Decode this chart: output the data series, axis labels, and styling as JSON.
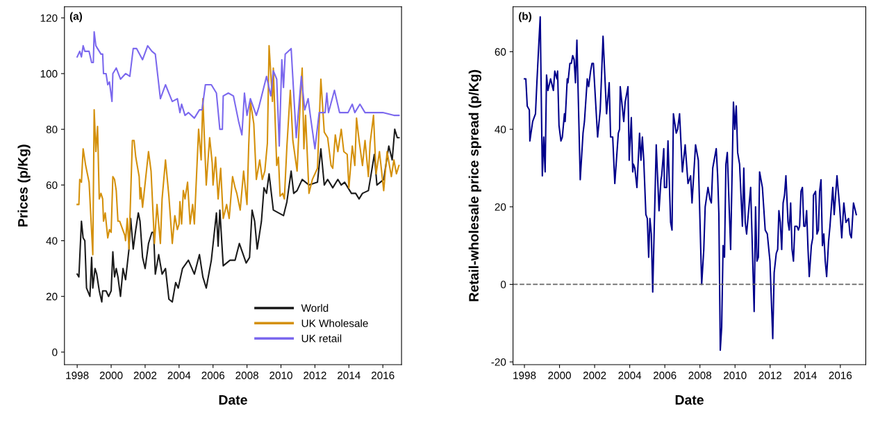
{
  "chart_data": [
    {
      "type": "line",
      "annotations": [
        "(a)"
      ],
      "xlabel": "Date",
      "ylabel": "Prices (p/Kg)",
      "xlim": [
        1997.25,
        2017.1
      ],
      "ylim": [
        -4.5,
        124
      ],
      "xticks": [
        1998,
        2000,
        2002,
        2004,
        2006,
        2008,
        2010,
        2012,
        2014,
        2016
      ],
      "yticks": [
        0,
        20,
        40,
        60,
        80,
        100,
        120
      ],
      "grid": false,
      "legend": "bottom right",
      "line_style": "solid",
      "marker": "none",
      "series": [
        {
          "name": "World",
          "color": "#1a1a1a",
          "x": [
            1998.0,
            1998.1,
            1998.25,
            1998.35,
            1998.45,
            1998.55,
            1998.75,
            1998.85,
            1998.92,
            1999.05,
            1999.15,
            1999.3,
            1999.45,
            1999.5,
            1999.7,
            1999.85,
            2000.0,
            2000.1,
            2000.2,
            2000.3,
            2000.4,
            2000.55,
            2000.7,
            2000.85,
            2001.05,
            2001.15,
            2001.3,
            2001.45,
            2001.6,
            2001.7,
            2001.85,
            2002.0,
            2002.2,
            2002.4,
            2002.5,
            2002.6,
            2002.8,
            2003.0,
            2003.2,
            2003.4,
            2003.6,
            2003.8,
            2003.95,
            2004.2,
            2004.55,
            2004.9,
            2005.2,
            2005.4,
            2005.6,
            2005.9,
            2006.2,
            2006.3,
            2006.4,
            2006.6,
            2006.8,
            2007.0,
            2007.3,
            2007.55,
            2007.95,
            2008.15,
            2008.3,
            2008.45,
            2008.6,
            2008.85,
            2009.0,
            2009.15,
            2009.3,
            2009.55,
            2009.85,
            2010.15,
            2010.35,
            2010.6,
            2010.75,
            2010.95,
            2011.25,
            2011.65,
            2012.15,
            2012.35,
            2012.55,
            2012.75,
            2013.05,
            2013.35,
            2013.55,
            2013.75,
            2014.15,
            2014.4,
            2014.6,
            2014.8,
            2015.15,
            2015.5,
            2015.65,
            2016.05,
            2016.35,
            2016.55,
            2016.7,
            2016.85,
            2016.95
          ],
          "values": [
            28,
            27,
            47,
            41,
            40,
            23,
            20,
            34,
            23,
            30,
            28,
            22,
            18,
            22,
            22,
            20,
            22,
            36,
            27,
            30,
            27,
            20,
            30,
            26,
            37,
            48,
            37,
            44,
            50,
            47,
            34,
            30,
            39,
            43,
            43,
            28,
            35,
            28,
            30,
            19,
            18,
            25,
            23,
            30,
            33,
            28,
            35,
            27,
            23,
            33,
            50,
            38,
            51,
            31,
            32,
            33,
            33,
            39,
            32,
            34,
            51,
            47,
            37,
            47,
            59,
            57,
            64,
            51,
            50,
            49,
            54,
            65,
            57,
            58,
            62,
            60,
            61,
            73,
            60,
            62,
            59,
            62,
            60,
            61,
            57,
            57,
            55,
            57,
            58,
            71,
            60,
            62,
            74,
            69,
            80,
            77,
            77
          ]
        },
        {
          "name": "UK Wholesale",
          "color": "#d4900a",
          "x": [
            1998.0,
            1998.1,
            1998.15,
            1998.25,
            1998.35,
            1998.5,
            1998.6,
            1998.7,
            1998.92,
            1999.0,
            1999.1,
            1999.2,
            1999.3,
            1999.4,
            1999.5,
            1999.55,
            1999.65,
            1999.8,
            1999.9,
            2000.0,
            2000.1,
            2000.2,
            2000.3,
            2000.4,
            2000.5,
            2000.8,
            2000.85,
            2000.95,
            2001.05,
            2001.25,
            2001.35,
            2001.45,
            2001.65,
            2001.7,
            2001.75,
            2001.85,
            2002.2,
            2002.35,
            2002.55,
            2002.7,
            2002.9,
            2003.0,
            2003.2,
            2003.4,
            2003.6,
            2003.75,
            2003.9,
            2004.0,
            2004.05,
            2004.15,
            2004.25,
            2004.35,
            2004.5,
            2004.65,
            2004.8,
            2004.9,
            2005.15,
            2005.3,
            2005.4,
            2005.6,
            2005.8,
            2005.95,
            2006.0,
            2006.15,
            2006.3,
            2006.45,
            2006.6,
            2006.8,
            2006.95,
            2007.15,
            2007.3,
            2007.4,
            2007.6,
            2007.8,
            2008.0,
            2008.1,
            2008.2,
            2008.4,
            2008.55,
            2008.75,
            2008.9,
            2009.05,
            2009.2,
            2009.3,
            2009.5,
            2009.55,
            2009.75,
            2009.85,
            2009.95,
            2010.1,
            2010.2,
            2010.35,
            2010.55,
            2010.7,
            2010.95,
            2011.15,
            2011.25,
            2011.35,
            2011.45,
            2011.65,
            2011.85,
            2012.15,
            2012.35,
            2012.55,
            2012.75,
            2012.95,
            2013.05,
            2013.2,
            2013.35,
            2013.55,
            2013.7,
            2013.9,
            2014.0,
            2014.2,
            2014.35,
            2014.45,
            2014.6,
            2014.8,
            2014.95,
            2015.15,
            2015.25,
            2015.45,
            2015.6,
            2015.8,
            2016.05,
            2016.25,
            2016.5,
            2016.65,
            2016.8,
            2016.95
          ],
          "values": [
            53,
            53,
            62,
            61,
            73,
            67,
            64,
            61,
            35,
            87,
            72,
            81,
            55,
            57,
            55,
            47,
            50,
            41,
            44,
            43,
            63,
            62,
            58,
            47,
            47,
            42,
            40,
            48,
            37,
            76,
            76,
            70,
            63,
            55,
            59,
            52,
            72,
            65,
            39,
            53,
            39,
            55,
            69,
            56,
            39,
            49,
            44,
            46,
            54,
            46,
            58,
            55,
            61,
            46,
            53,
            46,
            80,
            69,
            91,
            60,
            77,
            68,
            60,
            70,
            55,
            66,
            48,
            53,
            48,
            63,
            59,
            57,
            51,
            65,
            53,
            74,
            90,
            82,
            62,
            69,
            62,
            65,
            75,
            110,
            90,
            102,
            67,
            70,
            56,
            57,
            55,
            74,
            94,
            76,
            65,
            92,
            102,
            73,
            85,
            57,
            62,
            66,
            98,
            79,
            77,
            67,
            66,
            78,
            72,
            80,
            72,
            71,
            59,
            74,
            67,
            84,
            76,
            67,
            76,
            63,
            75,
            85,
            64,
            72,
            58,
            72,
            63,
            69,
            64,
            67
          ]
        },
        {
          "name": "UK retail",
          "color": "#7b68ee",
          "x": [
            1998.0,
            1998.15,
            1998.25,
            1998.35,
            1998.45,
            1998.7,
            1998.85,
            1998.95,
            1999.0,
            1999.1,
            1999.4,
            1999.5,
            1999.55,
            1999.7,
            1999.8,
            1999.9,
            2000.05,
            2000.1,
            2000.3,
            2000.55,
            2000.85,
            2001.1,
            2001.3,
            2001.5,
            2001.85,
            2002.15,
            2002.4,
            2002.6,
            2002.9,
            2003.2,
            2003.4,
            2003.6,
            2003.9,
            2004.05,
            2004.15,
            2004.35,
            2004.55,
            2004.9,
            2005.2,
            2005.35,
            2005.55,
            2005.9,
            2006.2,
            2006.4,
            2006.55,
            2006.6,
            2006.9,
            2007.2,
            2007.5,
            2007.7,
            2007.85,
            2008.0,
            2008.2,
            2008.55,
            2008.7,
            2009.15,
            2009.4,
            2009.55,
            2009.75,
            2009.9,
            2010.05,
            2010.15,
            2010.25,
            2010.6,
            2010.9,
            2011.2,
            2011.4,
            2011.6,
            2011.75,
            2012.0,
            2012.25,
            2012.6,
            2012.7,
            2012.8,
            2013.15,
            2013.45,
            2013.95,
            2014.2,
            2014.35,
            2014.65,
            2014.95,
            2015.35,
            2016.0,
            2016.65,
            2016.95
          ],
          "values": [
            106,
            108,
            106,
            110,
            108,
            108,
            104,
            104,
            115,
            110,
            107,
            107,
            100,
            100,
            96,
            97,
            90,
            100,
            102,
            98,
            100,
            99,
            109,
            109,
            105,
            110,
            108,
            107,
            91,
            96,
            93,
            90,
            91,
            86,
            89,
            85,
            86,
            84,
            87,
            87,
            96,
            96,
            93,
            80,
            80,
            92,
            93,
            92,
            83,
            78,
            93,
            85,
            91,
            85,
            88,
            99,
            92,
            101,
            98,
            74,
            105,
            95,
            107,
            109,
            77,
            99,
            87,
            91,
            84,
            73,
            86,
            86,
            93,
            86,
            94,
            86,
            86,
            89,
            86,
            89,
            86,
            86,
            86,
            85,
            85
          ]
        }
      ]
    },
    {
      "type": "line",
      "annotations": [
        "(b)"
      ],
      "xlabel": "Date",
      "ylabel": "Retail-wholesale price spread (p/Kg)",
      "xlim": [
        1997.35,
        2017.45
      ],
      "ylim": [
        -20.7,
        71.6
      ],
      "xticks": [
        1998,
        2000,
        2002,
        2004,
        2006,
        2008,
        2010,
        2012,
        2014,
        2016
      ],
      "yticks": [
        -20,
        0,
        20,
        40,
        60
      ],
      "grid": false,
      "line_style": "solid",
      "marker": "none",
      "ref_lines": [
        {
          "axis": "y",
          "value": 0,
          "color": "#666666",
          "line_style": "dashed"
        }
      ],
      "series": [
        {
          "color": "#00008b",
          "x": [
            1998.0,
            1998.08,
            1998.16,
            1998.28,
            1998.31,
            1998.47,
            1998.63,
            1998.71,
            1998.83,
            1998.9,
            1999.02,
            1999.1,
            1999.18,
            1999.26,
            1999.34,
            1999.49,
            1999.65,
            1999.73,
            1999.85,
            1999.89,
            1999.97,
            2000.08,
            2000.16,
            2000.28,
            2000.32,
            2000.44,
            2000.48,
            2000.59,
            2000.67,
            2000.75,
            2000.83,
            2000.91,
            2000.99,
            2001.18,
            2001.34,
            2001.42,
            2001.58,
            2001.66,
            2001.77,
            2001.85,
            2001.93,
            2002.17,
            2002.32,
            2002.48,
            2002.68,
            2002.83,
            2002.91,
            2003.03,
            2003.15,
            2003.35,
            2003.42,
            2003.46,
            2003.66,
            2003.74,
            2003.9,
            2003.97,
            2004.09,
            2004.17,
            2004.21,
            2004.29,
            2004.41,
            2004.56,
            2004.64,
            2004.72,
            2004.8,
            2004.92,
            2005.0,
            2005.08,
            2005.15,
            2005.23,
            2005.31,
            2005.51,
            2005.67,
            2005.78,
            2005.82,
            2005.94,
            2005.98,
            2006.1,
            2006.18,
            2006.33,
            2006.41,
            2006.49,
            2006.65,
            2006.73,
            2006.84,
            2007.0,
            2007.16,
            2007.32,
            2007.47,
            2007.55,
            2007.75,
            2007.91,
            2008.1,
            2008.22,
            2008.3,
            2008.46,
            2008.57,
            2008.65,
            2008.73,
            2008.93,
            2009.01,
            2009.08,
            2009.16,
            2009.24,
            2009.32,
            2009.4,
            2009.48,
            2009.56,
            2009.75,
            2009.91,
            2009.99,
            2010.07,
            2010.15,
            2010.26,
            2010.42,
            2010.5,
            2010.58,
            2010.66,
            2010.85,
            2010.89,
            2011.09,
            2011.17,
            2011.25,
            2011.33,
            2011.4,
            2011.56,
            2011.72,
            2011.84,
            2011.99,
            2012.15,
            2012.23,
            2012.35,
            2012.43,
            2012.5,
            2012.58,
            2012.66,
            2012.74,
            2012.82,
            2012.9,
            2013.02,
            2013.09,
            2013.17,
            2013.25,
            2013.33,
            2013.41,
            2013.53,
            2013.61,
            2013.68,
            2013.76,
            2013.84,
            2013.92,
            2014.0,
            2014.08,
            2014.16,
            2014.23,
            2014.35,
            2014.43,
            2014.47,
            2014.59,
            2014.67,
            2014.75,
            2014.82,
            2014.9,
            2014.98,
            2015.06,
            2015.14,
            2015.22,
            2015.33,
            2015.41,
            2015.57,
            2015.65,
            2015.81,
            2015.96,
            2016.08,
            2016.2,
            2016.32,
            2016.47,
            2016.55,
            2016.63,
            2016.75,
            2016.91
          ],
          "values": [
            53,
            53,
            46,
            45,
            37,
            42,
            44,
            52,
            63,
            69,
            28,
            38,
            29,
            54,
            50,
            53,
            50,
            55,
            53,
            55,
            41,
            37,
            38,
            44,
            42,
            53,
            52,
            57,
            57,
            59,
            58,
            52,
            63,
            27,
            39,
            42,
            53,
            51,
            55,
            57,
            57,
            38,
            45,
            64,
            44,
            52,
            38,
            38,
            26,
            39,
            40,
            51,
            42,
            47,
            51,
            32,
            43,
            29,
            31,
            30,
            25,
            39,
            32,
            38,
            32,
            18,
            17,
            7,
            17,
            13,
            -2,
            36,
            19,
            27,
            28,
            35,
            25,
            25,
            37,
            16,
            14,
            44,
            39,
            40,
            44,
            29,
            36,
            26,
            28,
            21,
            36,
            32,
            0,
            9,
            20,
            25,
            22,
            21,
            30,
            35,
            28,
            18,
            -17,
            -11,
            10,
            7,
            31,
            34,
            9,
            47,
            40,
            46,
            34,
            31,
            15,
            30,
            16,
            13,
            23,
            25,
            -7,
            20,
            6,
            7,
            29,
            25,
            14,
            13,
            6,
            -14,
            3,
            8,
            9,
            19,
            16,
            9,
            21,
            23,
            28,
            16,
            14,
            21,
            9,
            6,
            15,
            15,
            14,
            15,
            24,
            25,
            15,
            15,
            19,
            9,
            2,
            10,
            12,
            23,
            24,
            13,
            14,
            24,
            27,
            10,
            13,
            6,
            2,
            11,
            15,
            25,
            18,
            28,
            20,
            12,
            21,
            16,
            17,
            13,
            12,
            21,
            18
          ]
        }
      ]
    }
  ]
}
